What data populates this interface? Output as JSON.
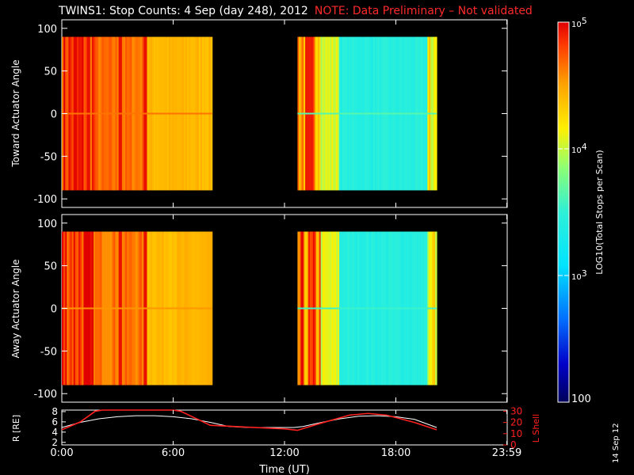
{
  "header": {
    "title": "TWINS1: Stop Counts:  4 Sep (day 248), 2012",
    "note": "NOTE: Data Preliminary – Not validated"
  },
  "footer": {
    "date_stamp": "14 Sep 12"
  },
  "colors": {
    "background": "#000000",
    "note": "#ff2a2a",
    "r_line": "#ffffff",
    "lshell_line": "#ff2020"
  },
  "chart_data": [
    {
      "type": "heatmap",
      "name": "toward",
      "ylabel": "Toward Actuator Angle",
      "ylim": [
        -110,
        110
      ],
      "yticks": [
        100,
        50,
        0,
        -50,
        -100
      ],
      "xlim": [
        0,
        24
      ],
      "data_blocks": [
        {
          "t_start": 0.0,
          "t_end": 8.1,
          "angle_range": [
            -90,
            90
          ],
          "dominant_log10": 4.4
        },
        {
          "t_start": 12.7,
          "t_end": 20.2,
          "angle_range": [
            -90,
            90
          ],
          "dominant_log10": 3.4
        }
      ]
    },
    {
      "type": "heatmap",
      "name": "away",
      "ylabel": "Away Actuator Angle",
      "ylim": [
        -110,
        110
      ],
      "yticks": [
        100,
        50,
        0,
        -50,
        -100
      ],
      "xlim": [
        0,
        24
      ],
      "data_blocks": [
        {
          "t_start": 0.0,
          "t_end": 8.1,
          "angle_range": [
            -90,
            90
          ],
          "dominant_log10": 4.3
        },
        {
          "t_start": 12.7,
          "t_end": 20.2,
          "angle_range": [
            -90,
            90
          ],
          "dominant_log10": 3.3
        }
      ]
    },
    {
      "type": "line",
      "name": "orbit",
      "xlabel": "Time (UT)",
      "xticks": [
        "0:00",
        "6:00",
        "12:00",
        "18:00",
        "23:59"
      ],
      "xtick_values": [
        0,
        6,
        12,
        18,
        23.98
      ],
      "xlim": [
        0,
        24
      ],
      "y_left_label": "R [RE]",
      "y_left_ticks": [
        "2",
        "4",
        "6",
        "8"
      ],
      "y_left_lim": [
        1.5,
        8.3
      ],
      "y_right_label": "L Shell",
      "y_right_ticks": [
        "0",
        "10",
        "20",
        "30"
      ],
      "y_right_lim": [
        0,
        31
      ],
      "series": [
        {
          "name": "R",
          "x": [
            0,
            1,
            2,
            3,
            4,
            5,
            6,
            7,
            8,
            9,
            10,
            11,
            12,
            12.5,
            13,
            14,
            15,
            16,
            17,
            18,
            19,
            20.2
          ],
          "y": [
            4.9,
            5.9,
            6.6,
            7.0,
            7.2,
            7.2,
            7.0,
            6.6,
            5.9,
            5.1,
            4.9,
            4.9,
            4.9,
            4.9,
            5.1,
            5.9,
            6.6,
            7.1,
            7.2,
            7.0,
            6.5,
            4.9
          ]
        },
        {
          "name": "L Shell",
          "x": [
            0,
            1,
            1.8,
            2.2,
            6.0,
            6.4,
            8.0,
            10.0,
            12.0,
            12.7,
            14.0,
            15.5,
            16.5,
            17.5,
            19.0,
            20.2
          ],
          "y": [
            13.5,
            20.5,
            30,
            31,
            31,
            30,
            17.5,
            15.8,
            14.3,
            13.0,
            19.5,
            26.5,
            28.0,
            26.5,
            20.0,
            13.5
          ]
        }
      ]
    },
    {
      "type": "colorbar",
      "label": "LOG10(Total Stops per Scan)",
      "scale": "log",
      "lim": [
        100,
        100000
      ],
      "ticks": [
        "10^5",
        "10^4",
        "10^3",
        "100"
      ]
    }
  ]
}
